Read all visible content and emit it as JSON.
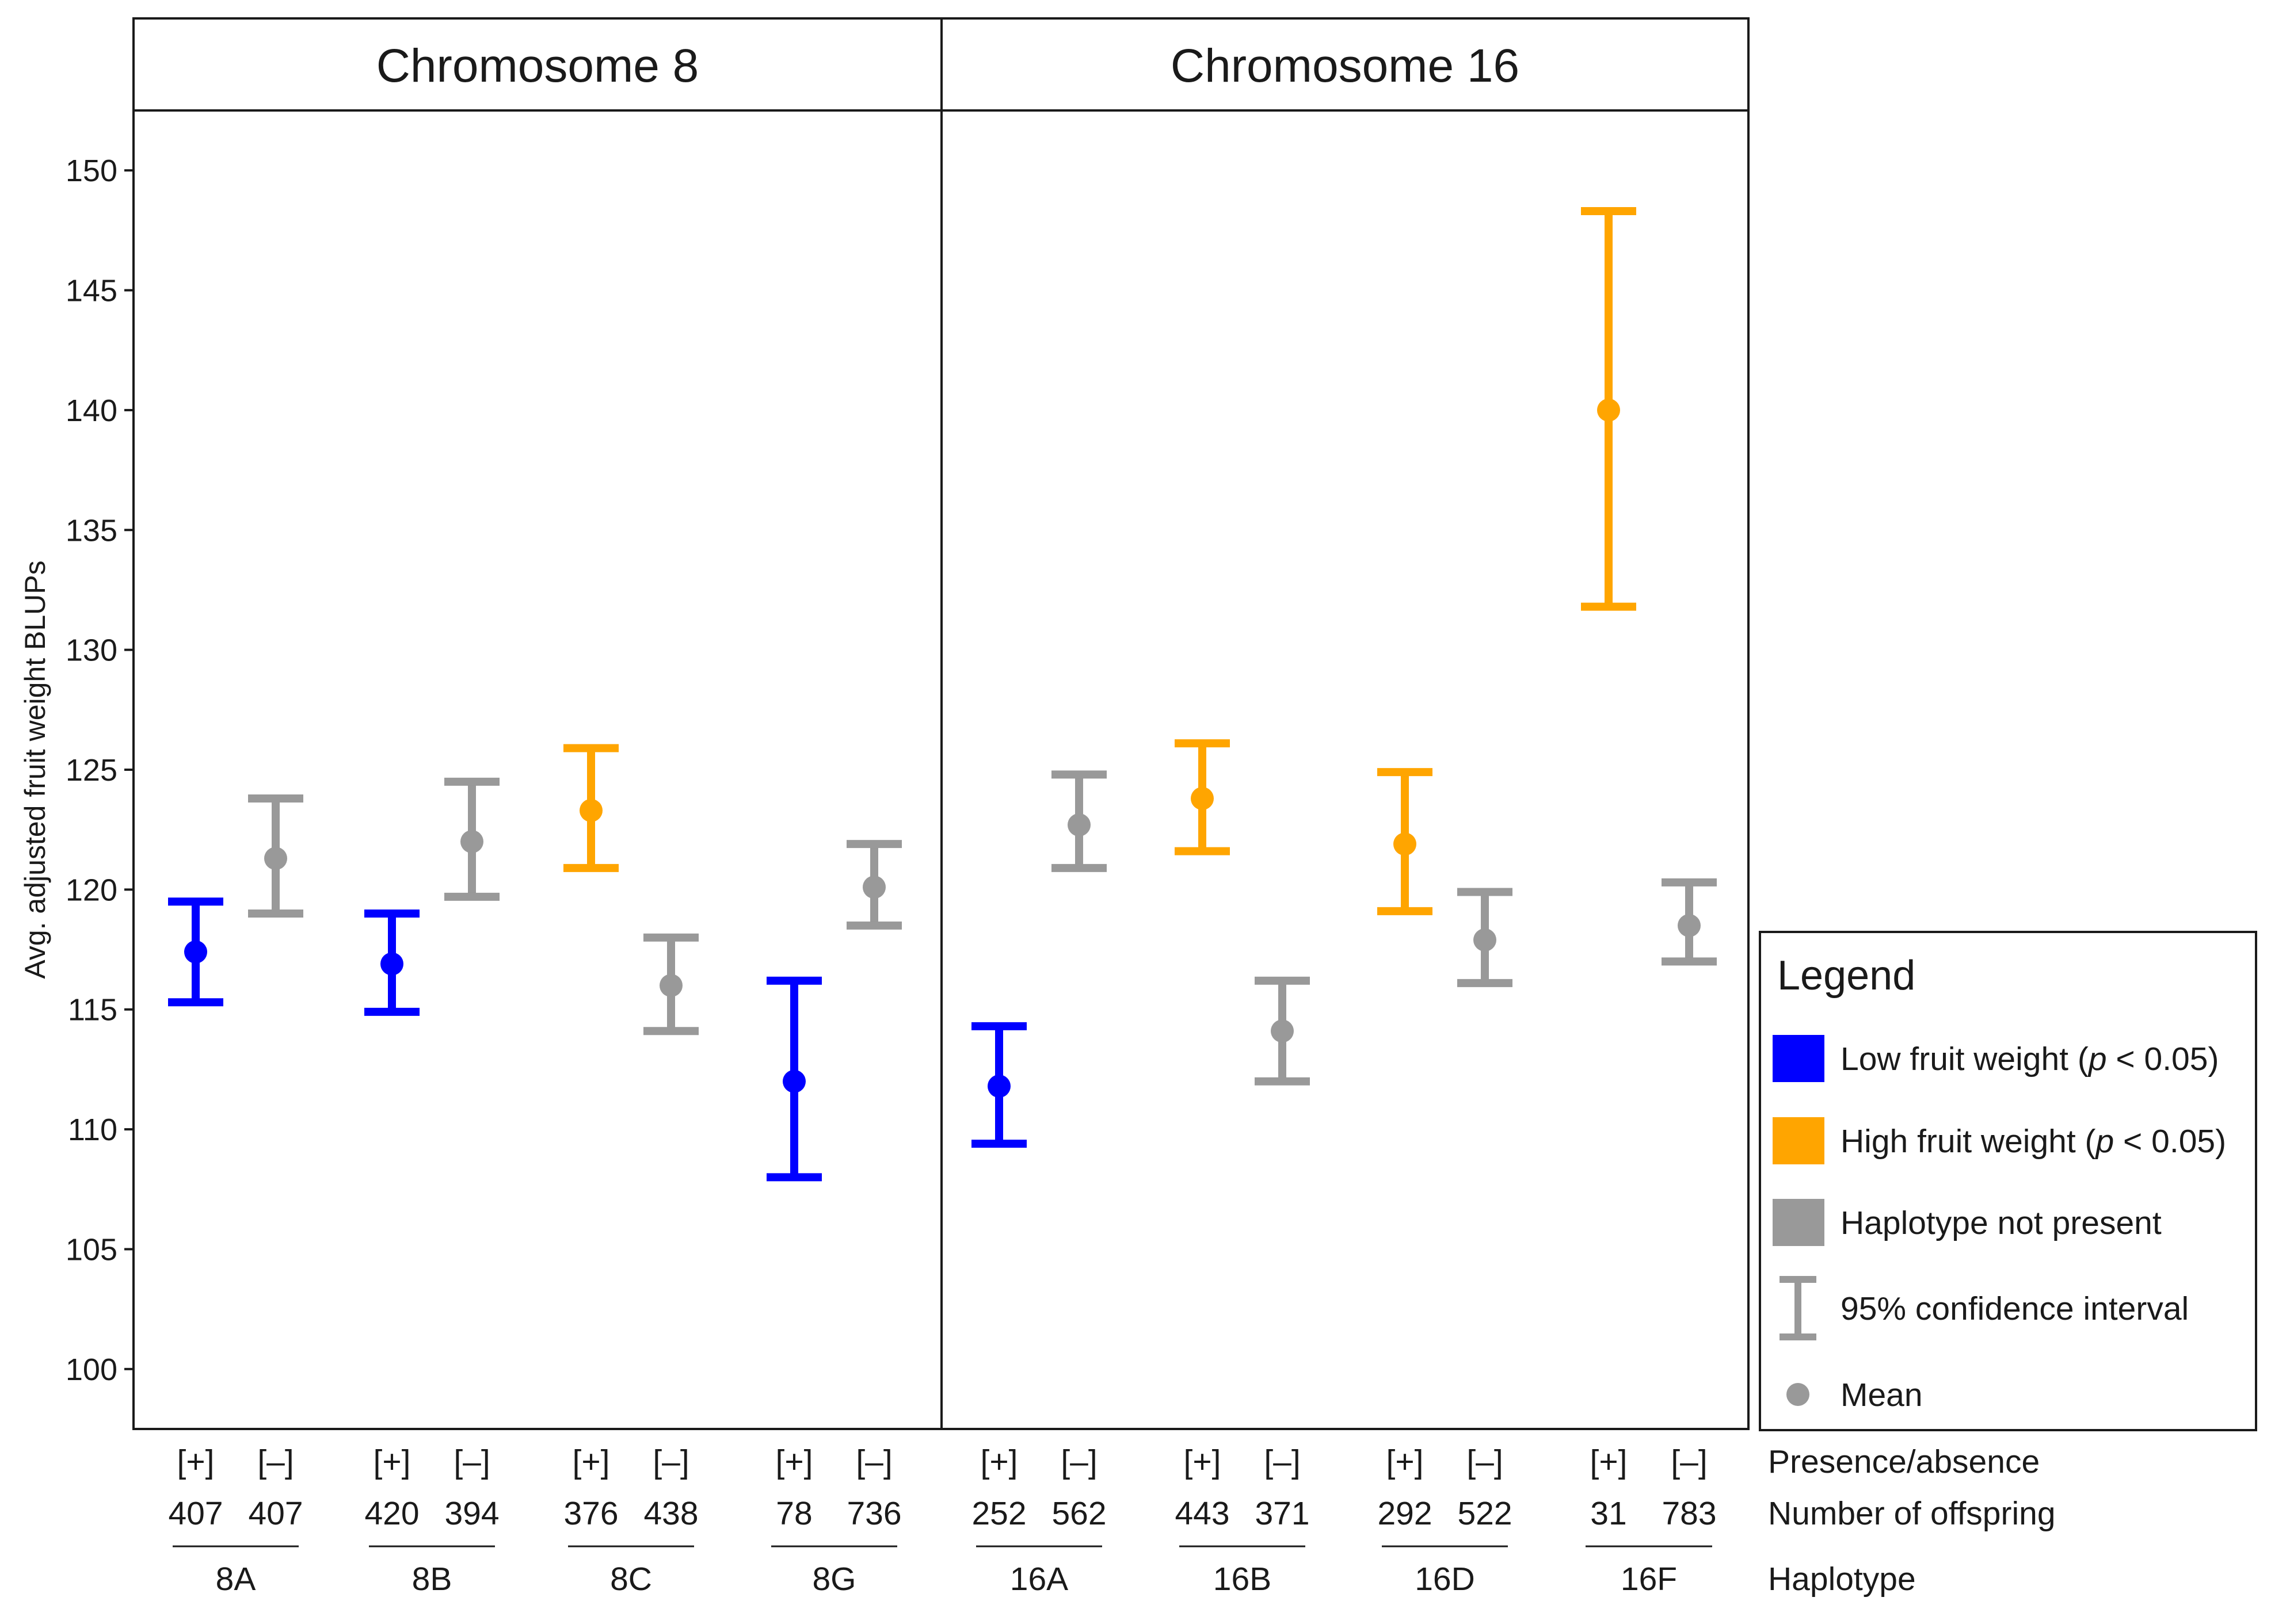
{
  "chart_data": {
    "type": "errorbar",
    "ylabel": "Avg. adjusted fruit weight BLUPs",
    "ylim": [
      97.5,
      152.5
    ],
    "yticks": [
      100,
      105,
      110,
      115,
      120,
      125,
      130,
      135,
      140,
      145,
      150
    ],
    "colors": {
      "low": "#0000ff",
      "high": "#ffa500",
      "none": "#999999"
    },
    "panels": [
      {
        "title": "Chromosome 8",
        "haplotypes": [
          {
            "name": "8A",
            "groups": [
              {
                "pa": "[+]",
                "n": "407",
                "mean": 117.4,
                "lo": 115.3,
                "hi": 119.5,
                "class": "low"
              },
              {
                "pa": "[–]",
                "n": "407",
                "mean": 121.3,
                "lo": 119.0,
                "hi": 123.8,
                "class": "none"
              }
            ]
          },
          {
            "name": "8B",
            "groups": [
              {
                "pa": "[+]",
                "n": "420",
                "mean": 116.9,
                "lo": 114.9,
                "hi": 119.0,
                "class": "low"
              },
              {
                "pa": "[–]",
                "n": "394",
                "mean": 122.0,
                "lo": 119.7,
                "hi": 124.5,
                "class": "none"
              }
            ]
          },
          {
            "name": "8C",
            "groups": [
              {
                "pa": "[+]",
                "n": "376",
                "mean": 123.3,
                "lo": 120.9,
                "hi": 125.9,
                "class": "high"
              },
              {
                "pa": "[–]",
                "n": "438",
                "mean": 116.0,
                "lo": 114.1,
                "hi": 118.0,
                "class": "none"
              }
            ]
          },
          {
            "name": "8G",
            "groups": [
              {
                "pa": "[+]",
                "n": "78",
                "mean": 112.0,
                "lo": 108.0,
                "hi": 116.2,
                "class": "low"
              },
              {
                "pa": "[–]",
                "n": "736",
                "mean": 120.1,
                "lo": 118.5,
                "hi": 121.9,
                "class": "none"
              }
            ]
          }
        ]
      },
      {
        "title": "Chromosome 16",
        "haplotypes": [
          {
            "name": "16A",
            "groups": [
              {
                "pa": "[+]",
                "n": "252",
                "mean": 111.8,
                "lo": 109.4,
                "hi": 114.3,
                "class": "low"
              },
              {
                "pa": "[–]",
                "n": "562",
                "mean": 122.7,
                "lo": 120.9,
                "hi": 124.8,
                "class": "none"
              }
            ]
          },
          {
            "name": "16B",
            "groups": [
              {
                "pa": "[+]",
                "n": "443",
                "mean": 123.8,
                "lo": 121.6,
                "hi": 126.1,
                "class": "high"
              },
              {
                "pa": "[–]",
                "n": "371",
                "mean": 114.1,
                "lo": 112.0,
                "hi": 116.2,
                "class": "none"
              }
            ]
          },
          {
            "name": "16D",
            "groups": [
              {
                "pa": "[+]",
                "n": "292",
                "mean": 121.9,
                "lo": 119.1,
                "hi": 124.9,
                "class": "high"
              },
              {
                "pa": "[–]",
                "n": "522",
                "mean": 117.9,
                "lo": 116.1,
                "hi": 119.9,
                "class": "none"
              }
            ]
          },
          {
            "name": "16F",
            "groups": [
              {
                "pa": "[+]",
                "n": "31",
                "mean": 140.0,
                "lo": 131.8,
                "hi": 148.3,
                "class": "high"
              },
              {
                "pa": "[–]",
                "n": "783",
                "mean": 118.5,
                "lo": 117.0,
                "hi": 120.3,
                "class": "none"
              }
            ]
          }
        ]
      }
    ],
    "row_labels": {
      "presence": "Presence/absence",
      "offspring": "Number of offspring",
      "haplotype": "Haplotype"
    },
    "legend": {
      "title": "Legend",
      "placement": "right",
      "items": [
        {
          "kind": "swatch",
          "class": "low",
          "text_before": "Low fruit weight (",
          "text_italic": "p",
          "text_after": " < 0.05)"
        },
        {
          "kind": "swatch",
          "class": "high",
          "text_before": "High fruit weight (",
          "text_italic": "p",
          "text_after": " < 0.05)"
        },
        {
          "kind": "swatch",
          "class": "none",
          "text_before": "Haplotype not present",
          "text_italic": "",
          "text_after": ""
        },
        {
          "kind": "errorbar",
          "class": "none",
          "text_before": "95% confidence interval",
          "text_italic": "",
          "text_after": ""
        },
        {
          "kind": "point",
          "class": "none",
          "text_before": "Mean",
          "text_italic": "",
          "text_after": ""
        }
      ]
    }
  }
}
